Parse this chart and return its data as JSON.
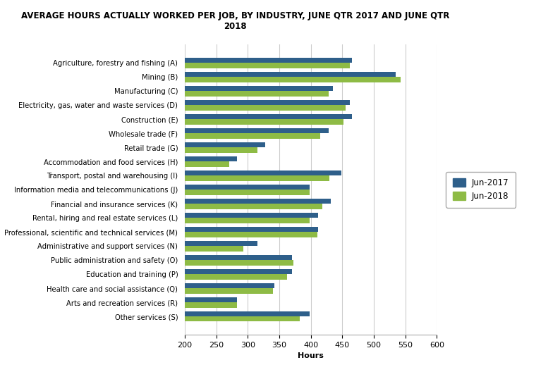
{
  "title": "AVERAGE HOURS ACTUALLY WORKED PER JOB, BY INDUSTRY, JUNE QTR 2017 AND JUNE QTR\n2018",
  "categories": [
    "Agriculture, forestry and fishing (A)",
    "Mining (B)",
    "Manufacturing (C)",
    "Electricity, gas, water and waste services (D)",
    "Construction (E)",
    "Wholesale trade (F)",
    "Retail trade (G)",
    "Accommodation and food services (H)",
    "Transport, postal and warehousing (I)",
    "Information media and telecommunications (J)",
    "Financial and insurance services (K)",
    "Rental, hiring and real estate services (L)",
    "Professional, scientific and technical services (M)",
    "Administrative and support services (N)",
    "Public administration and safety (O)",
    "Education and training (P)",
    "Health care and social assistance (Q)",
    "Arts and recreation services (R)",
    "Other services (S)"
  ],
  "jun2017": [
    465,
    535,
    435,
    462,
    465,
    428,
    328,
    283,
    448,
    398,
    432,
    412,
    412,
    315,
    370,
    370,
    342,
    283,
    398
  ],
  "jun2018": [
    462,
    543,
    428,
    455,
    452,
    415,
    315,
    270,
    430,
    398,
    418,
    398,
    410,
    293,
    372,
    362,
    340,
    283,
    383
  ],
  "color_2017": "#2E5F8A",
  "color_2018": "#8EBB45",
  "xlabel": "Hours",
  "xlim": [
    200,
    600
  ],
  "xticks": [
    200,
    250,
    300,
    350,
    400,
    450,
    500,
    550,
    600
  ],
  "legend_2017": "Jun-2017",
  "legend_2018": "Jun-2018",
  "background_color": "#FFFFFF",
  "plot_bg_color": "#FFFFFF",
  "grid_color": "#CCCCCC",
  "bar_height": 0.37,
  "title_fontsize": 8.5,
  "label_fontsize": 7.2,
  "tick_fontsize": 8
}
